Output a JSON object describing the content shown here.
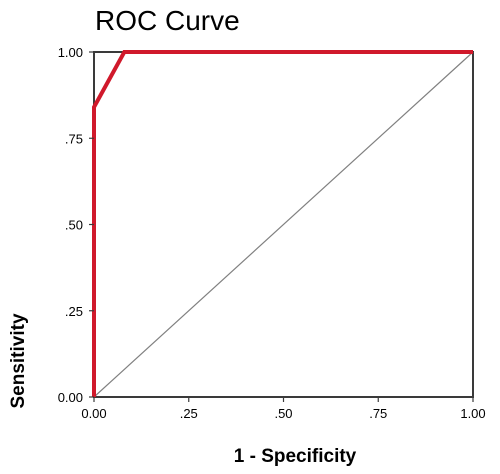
{
  "chart_data": {
    "type": "line",
    "title": "ROC Curve",
    "xlabel": "1 - Specificity",
    "ylabel": "Sensitivity",
    "xlim": [
      0,
      1
    ],
    "ylim": [
      0,
      1
    ],
    "x_ticks": [
      0,
      0.25,
      0.5,
      0.75,
      1
    ],
    "x_tick_labels": [
      "0.00",
      ".25",
      ".50",
      ".75",
      "1.00"
    ],
    "y_ticks": [
      0,
      0.25,
      0.5,
      0.75,
      1
    ],
    "y_tick_labels": [
      "0.00",
      ".25",
      ".50",
      ".75",
      "1.00"
    ],
    "grid": false,
    "series": [
      {
        "x": [
          0,
          0,
          0.08,
          1
        ],
        "y": [
          0,
          0.84,
          1,
          1
        ],
        "color": "#d0192b"
      }
    ],
    "reference_line": {
      "x": [
        0,
        1
      ],
      "y": [
        0,
        1
      ],
      "color": "#808080"
    },
    "frame_color": "#3a3a3a"
  }
}
